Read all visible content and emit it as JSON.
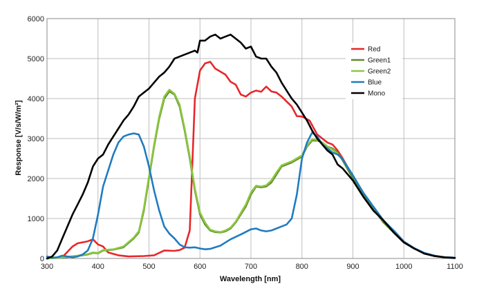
{
  "chart_data": {
    "type": "line",
    "xlabel": "Wavelength [nm]",
    "ylabel": "Response [V/s/W/m²]",
    "xlim": [
      300,
      1100
    ],
    "ylim": [
      0,
      6000
    ],
    "x_ticks": [
      300,
      400,
      500,
      600,
      700,
      800,
      900,
      1000,
      1100
    ],
    "y_ticks": [
      0,
      1000,
      2000,
      3000,
      4000,
      5000,
      6000
    ],
    "grid": true,
    "legend_position": "top-right",
    "series": [
      {
        "name": "Red",
        "color": "#e8262a",
        "points": [
          [
            300,
            0
          ],
          [
            330,
            30
          ],
          [
            350,
            300
          ],
          [
            360,
            380
          ],
          [
            380,
            430
          ],
          [
            390,
            480
          ],
          [
            400,
            350
          ],
          [
            410,
            300
          ],
          [
            420,
            150
          ],
          [
            440,
            80
          ],
          [
            460,
            50
          ],
          [
            490,
            60
          ],
          [
            510,
            80
          ],
          [
            530,
            200
          ],
          [
            550,
            190
          ],
          [
            560,
            210
          ],
          [
            570,
            270
          ],
          [
            580,
            700
          ],
          [
            590,
            4000
          ],
          [
            600,
            4700
          ],
          [
            610,
            4880
          ],
          [
            620,
            4920
          ],
          [
            630,
            4750
          ],
          [
            650,
            4600
          ],
          [
            660,
            4420
          ],
          [
            670,
            4350
          ],
          [
            680,
            4100
          ],
          [
            690,
            4050
          ],
          [
            700,
            4150
          ],
          [
            710,
            4200
          ],
          [
            720,
            4170
          ],
          [
            730,
            4300
          ],
          [
            740,
            4180
          ],
          [
            750,
            4150
          ],
          [
            760,
            4050
          ],
          [
            780,
            3800
          ],
          [
            790,
            3560
          ],
          [
            800,
            3550
          ],
          [
            815,
            3450
          ],
          [
            830,
            3100
          ],
          [
            840,
            3000
          ],
          [
            850,
            2900
          ],
          [
            860,
            2850
          ],
          [
            870,
            2700
          ],
          [
            880,
            2500
          ],
          [
            900,
            2050
          ],
          [
            920,
            1600
          ],
          [
            940,
            1250
          ],
          [
            960,
            900
          ],
          [
            980,
            700
          ],
          [
            1000,
            420
          ],
          [
            1020,
            250
          ],
          [
            1040,
            130
          ],
          [
            1060,
            60
          ],
          [
            1080,
            30
          ],
          [
            1100,
            20
          ]
        ]
      },
      {
        "name": "Green1",
        "color": "#5e8a2c",
        "points": [
          [
            300,
            0
          ],
          [
            330,
            20
          ],
          [
            360,
            60
          ],
          [
            380,
            100
          ],
          [
            390,
            140
          ],
          [
            400,
            130
          ],
          [
            410,
            200
          ],
          [
            430,
            220
          ],
          [
            450,
            280
          ],
          [
            470,
            500
          ],
          [
            480,
            650
          ],
          [
            490,
            1200
          ],
          [
            500,
            2000
          ],
          [
            510,
            2800
          ],
          [
            520,
            3500
          ],
          [
            530,
            4000
          ],
          [
            540,
            4180
          ],
          [
            550,
            4100
          ],
          [
            560,
            3800
          ],
          [
            570,
            3200
          ],
          [
            580,
            2500
          ],
          [
            590,
            1700
          ],
          [
            600,
            1100
          ],
          [
            610,
            850
          ],
          [
            620,
            700
          ],
          [
            630,
            660
          ],
          [
            640,
            650
          ],
          [
            650,
            680
          ],
          [
            660,
            750
          ],
          [
            670,
            900
          ],
          [
            690,
            1300
          ],
          [
            700,
            1600
          ],
          [
            710,
            1800
          ],
          [
            720,
            1780
          ],
          [
            730,
            1800
          ],
          [
            740,
            1900
          ],
          [
            750,
            2100
          ],
          [
            760,
            2300
          ],
          [
            780,
            2400
          ],
          [
            800,
            2550
          ],
          [
            810,
            2800
          ],
          [
            820,
            2950
          ],
          [
            830,
            2950
          ],
          [
            840,
            2900
          ],
          [
            850,
            2800
          ],
          [
            860,
            2750
          ],
          [
            870,
            2650
          ],
          [
            880,
            2450
          ],
          [
            900,
            2000
          ],
          [
            920,
            1600
          ],
          [
            940,
            1250
          ],
          [
            960,
            900
          ],
          [
            980,
            650
          ],
          [
            1000,
            400
          ],
          [
            1020,
            250
          ],
          [
            1040,
            130
          ],
          [
            1060,
            60
          ],
          [
            1080,
            30
          ],
          [
            1100,
            20
          ]
        ]
      },
      {
        "name": "Green2",
        "color": "#8cc73f",
        "points": [
          [
            300,
            0
          ],
          [
            330,
            30
          ],
          [
            360,
            70
          ],
          [
            380,
            110
          ],
          [
            390,
            150
          ],
          [
            400,
            140
          ],
          [
            410,
            210
          ],
          [
            430,
            230
          ],
          [
            450,
            300
          ],
          [
            470,
            520
          ],
          [
            480,
            680
          ],
          [
            490,
            1250
          ],
          [
            500,
            2050
          ],
          [
            510,
            2850
          ],
          [
            520,
            3550
          ],
          [
            530,
            4050
          ],
          [
            540,
            4220
          ],
          [
            550,
            4120
          ],
          [
            560,
            3850
          ],
          [
            570,
            3250
          ],
          [
            580,
            2550
          ],
          [
            590,
            1750
          ],
          [
            600,
            1150
          ],
          [
            610,
            900
          ],
          [
            620,
            720
          ],
          [
            630,
            680
          ],
          [
            640,
            660
          ],
          [
            650,
            700
          ],
          [
            660,
            770
          ],
          [
            670,
            920
          ],
          [
            690,
            1350
          ],
          [
            700,
            1650
          ],
          [
            710,
            1820
          ],
          [
            720,
            1800
          ],
          [
            730,
            1830
          ],
          [
            740,
            1950
          ],
          [
            750,
            2150
          ],
          [
            760,
            2330
          ],
          [
            780,
            2430
          ],
          [
            800,
            2580
          ],
          [
            810,
            2830
          ],
          [
            820,
            2980
          ],
          [
            830,
            2970
          ],
          [
            840,
            2900
          ],
          [
            850,
            2800
          ],
          [
            860,
            2720
          ],
          [
            870,
            2620
          ]
        ]
      },
      {
        "name": "Blue",
        "color": "#1f7bc0",
        "points": [
          [
            300,
            50
          ],
          [
            310,
            20
          ],
          [
            320,
            30
          ],
          [
            330,
            70
          ],
          [
            340,
            50
          ],
          [
            350,
            30
          ],
          [
            360,
            50
          ],
          [
            370,
            100
          ],
          [
            380,
            200
          ],
          [
            390,
            500
          ],
          [
            400,
            1100
          ],
          [
            410,
            1800
          ],
          [
            420,
            2200
          ],
          [
            430,
            2600
          ],
          [
            440,
            2900
          ],
          [
            450,
            3050
          ],
          [
            460,
            3100
          ],
          [
            470,
            3130
          ],
          [
            480,
            3100
          ],
          [
            490,
            2800
          ],
          [
            500,
            2300
          ],
          [
            510,
            1700
          ],
          [
            520,
            1200
          ],
          [
            530,
            800
          ],
          [
            540,
            620
          ],
          [
            550,
            500
          ],
          [
            560,
            350
          ],
          [
            570,
            280
          ],
          [
            580,
            270
          ],
          [
            590,
            280
          ],
          [
            600,
            250
          ],
          [
            610,
            230
          ],
          [
            620,
            240
          ],
          [
            640,
            320
          ],
          [
            660,
            480
          ],
          [
            680,
            600
          ],
          [
            700,
            730
          ],
          [
            710,
            750
          ],
          [
            720,
            700
          ],
          [
            730,
            680
          ],
          [
            740,
            700
          ],
          [
            750,
            750
          ],
          [
            760,
            800
          ],
          [
            770,
            850
          ],
          [
            780,
            1000
          ],
          [
            790,
            1600
          ],
          [
            800,
            2500
          ],
          [
            810,
            2900
          ],
          [
            820,
            3150
          ],
          [
            830,
            3050
          ],
          [
            840,
            2850
          ],
          [
            850,
            2750
          ],
          [
            860,
            2650
          ],
          [
            870,
            2600
          ],
          [
            880,
            2480
          ],
          [
            900,
            2080
          ],
          [
            920,
            1650
          ],
          [
            940,
            1300
          ],
          [
            960,
            950
          ],
          [
            980,
            700
          ],
          [
            1000,
            420
          ],
          [
            1020,
            260
          ],
          [
            1040,
            140
          ],
          [
            1060,
            70
          ],
          [
            1080,
            30
          ],
          [
            1100,
            20
          ]
        ]
      },
      {
        "name": "Mono",
        "color": "#000000",
        "points": [
          [
            300,
            0
          ],
          [
            310,
            50
          ],
          [
            320,
            200
          ],
          [
            330,
            500
          ],
          [
            340,
            800
          ],
          [
            350,
            1100
          ],
          [
            360,
            1350
          ],
          [
            370,
            1600
          ],
          [
            380,
            1900
          ],
          [
            390,
            2300
          ],
          [
            400,
            2500
          ],
          [
            410,
            2600
          ],
          [
            420,
            2850
          ],
          [
            430,
            3050
          ],
          [
            440,
            3250
          ],
          [
            450,
            3450
          ],
          [
            460,
            3600
          ],
          [
            470,
            3800
          ],
          [
            480,
            4050
          ],
          [
            490,
            4150
          ],
          [
            500,
            4250
          ],
          [
            510,
            4400
          ],
          [
            520,
            4550
          ],
          [
            530,
            4650
          ],
          [
            540,
            4800
          ],
          [
            550,
            5000
          ],
          [
            560,
            5050
          ],
          [
            570,
            5100
          ],
          [
            580,
            5150
          ],
          [
            590,
            5200
          ],
          [
            595,
            5150
          ],
          [
            600,
            5450
          ],
          [
            610,
            5450
          ],
          [
            620,
            5550
          ],
          [
            630,
            5600
          ],
          [
            640,
            5500
          ],
          [
            650,
            5550
          ],
          [
            660,
            5600
          ],
          [
            670,
            5500
          ],
          [
            680,
            5400
          ],
          [
            690,
            5250
          ],
          [
            700,
            5300
          ],
          [
            710,
            5050
          ],
          [
            720,
            5000
          ],
          [
            730,
            5000
          ],
          [
            740,
            4800
          ],
          [
            750,
            4650
          ],
          [
            760,
            4400
          ],
          [
            770,
            4200
          ],
          [
            780,
            4000
          ],
          [
            790,
            3850
          ],
          [
            800,
            3650
          ],
          [
            810,
            3450
          ],
          [
            820,
            3200
          ],
          [
            830,
            3000
          ],
          [
            840,
            2850
          ],
          [
            850,
            2700
          ],
          [
            860,
            2600
          ],
          [
            870,
            2350
          ],
          [
            880,
            2250
          ],
          [
            900,
            1950
          ],
          [
            920,
            1550
          ],
          [
            940,
            1200
          ],
          [
            960,
            950
          ],
          [
            980,
            650
          ],
          [
            1000,
            400
          ],
          [
            1020,
            250
          ],
          [
            1040,
            120
          ],
          [
            1060,
            60
          ],
          [
            1080,
            30
          ],
          [
            1100,
            10
          ]
        ]
      }
    ]
  }
}
